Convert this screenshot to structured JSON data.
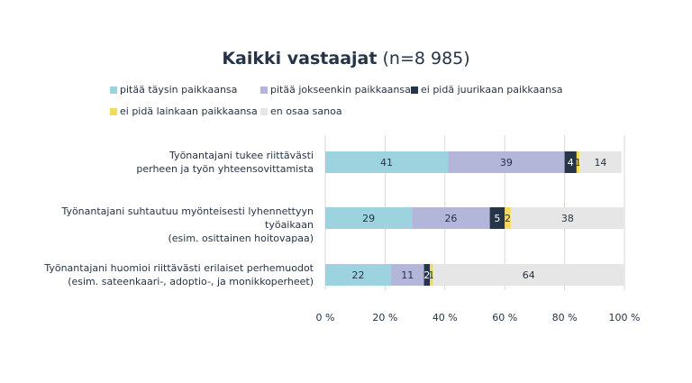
{
  "chart_data": {
    "type": "bar",
    "orientation": "horizontal",
    "stacked": true,
    "title": "Kaikki vastaajat",
    "subtitle": "(n=8 985)",
    "categories": [
      [
        "Työnantajani tukee riittävästi",
        "perheen ja työn yhteensovittamista"
      ],
      [
        "Työnantajani suhtautuu myönteisesti lyhennettyyn työaikaan",
        "(esim. osittainen hoitovapaa)"
      ],
      [
        "Työnantajani huomioi riittävästi erilaiset perhemuodot",
        "(esim. sateenkaari-, adoptio-, ja monikkoperheet)"
      ]
    ],
    "series": [
      {
        "name": "pitää täysin paikkaansa",
        "color": "#9dd3df",
        "label_color": "#253446",
        "values": [
          41,
          29,
          22
        ]
      },
      {
        "name": "pitää jokseenkin paikkaansa",
        "color": "#b3b5d9",
        "label_color": "#253446",
        "values": [
          39,
          26,
          11
        ]
      },
      {
        "name": "ei pidä juurikaan paikkaansa",
        "color": "#253446",
        "label_color": "#ffffff",
        "values": [
          4,
          5,
          2
        ]
      },
      {
        "name": "ei pidä lainkaan paikkaansa",
        "color": "#f4db5a",
        "label_color": "#253446",
        "values": [
          1,
          2,
          1
        ]
      },
      {
        "name": "en osaa sanoa",
        "color": "#e6e6e6",
        "label_color": "#253446",
        "values": [
          14,
          38,
          64
        ]
      }
    ],
    "xlim": [
      0,
      100
    ],
    "xticks": [
      "0 %",
      "20 %",
      "40 %",
      "60 %",
      "80 %",
      "100 %"
    ],
    "grid": true,
    "legend_position": "top"
  }
}
